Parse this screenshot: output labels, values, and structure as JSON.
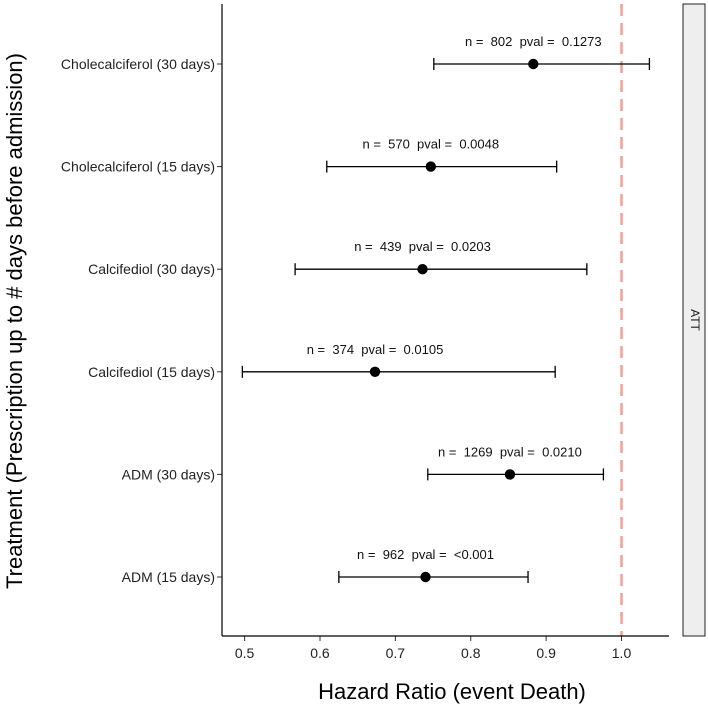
{
  "chart_data": {
    "type": "scatter",
    "subtype": "forest-plot",
    "xlabel": "Hazard Ratio (event Death)",
    "ylabel": "Treatment (Prescription up to # days before admission)",
    "xlim": [
      0.47,
      1.063
    ],
    "x_ticks": [
      "0.5",
      "0.6",
      "0.7",
      "0.8",
      "0.9",
      "1.0"
    ],
    "x_tick_values": [
      0.5,
      0.6,
      0.7,
      0.8,
      0.9,
      1.0
    ],
    "reference_line": {
      "x": 1.0,
      "style": "dashed",
      "color": "#f4a095"
    },
    "facet_label": "ATT",
    "grid": false,
    "rows": [
      {
        "label": "Cholecalciferol (30 days)",
        "hr": 0.883,
        "lower": 0.751,
        "upper": 1.037,
        "annotation": "n =  802  pval =  0.1273"
      },
      {
        "label": "Cholecalciferol (15 days)",
        "hr": 0.747,
        "lower": 0.609,
        "upper": 0.914,
        "annotation": "n =  570  pval =  0.0048"
      },
      {
        "label": "Calcifediol (30 days)",
        "hr": 0.736,
        "lower": 0.567,
        "upper": 0.954,
        "annotation": "n =  439  pval =  0.0203"
      },
      {
        "label": "Calcifediol (15 days)",
        "hr": 0.673,
        "lower": 0.497,
        "upper": 0.912,
        "annotation": "n =  374  pval =  0.0105"
      },
      {
        "label": "ADM (30 days)",
        "hr": 0.852,
        "lower": 0.743,
        "upper": 0.976,
        "annotation": "n =  1269  pval =  0.0210"
      },
      {
        "label": "ADM (15 days)",
        "hr": 0.74,
        "lower": 0.625,
        "upper": 0.876,
        "annotation": "n =  962  pval =  <0.001"
      }
    ]
  }
}
